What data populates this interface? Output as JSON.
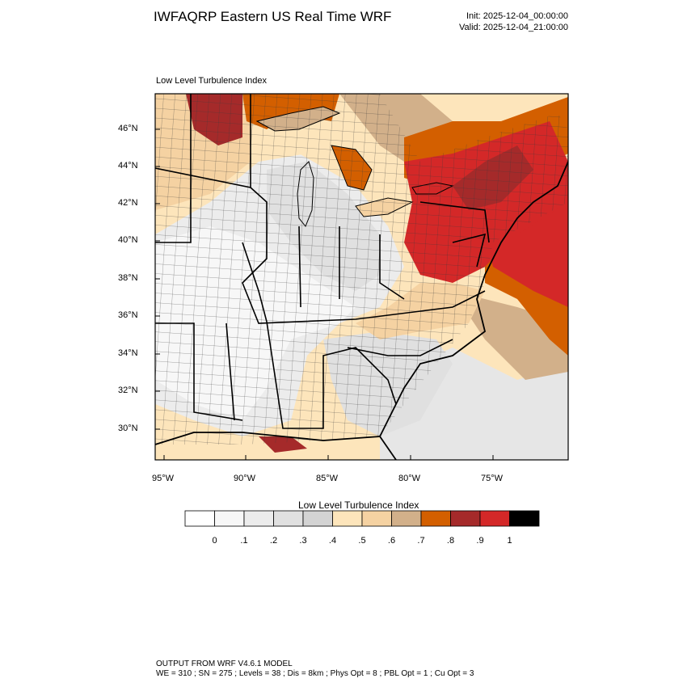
{
  "header": {
    "title": "IWFAQRP Eastern US Real Time WRF",
    "init": "Init: 2025-12-04_00:00:00",
    "valid": "Valid: 2025-12-04_21:00:00"
  },
  "plot": {
    "subtitle": "Low Level Turbulence Index",
    "lat_labels": [
      "46°N",
      "44°N",
      "42°N",
      "40°N",
      "38°N",
      "36°N",
      "34°N",
      "32°N",
      "30°N"
    ],
    "lon_labels": [
      "95°W",
      "90°W",
      "85°W",
      "80°W",
      "75°W"
    ]
  },
  "colorbar": {
    "title": "Low Level Turbulence Index",
    "labels": [
      "0",
      ".1",
      ".2",
      ".3",
      ".4",
      ".5",
      ".6",
      ".7",
      ".8",
      ".9",
      "1"
    ],
    "colors": [
      "#ffffff",
      "#f7f7f7",
      "#ececec",
      "#e0e0e0",
      "#d3d3d3",
      "#fde5bb",
      "#f5d2a2",
      "#d2b08a",
      "#d35f00",
      "#a52a2a",
      "#d42828",
      "#000000"
    ]
  },
  "footer": {
    "line1": "OUTPUT FROM WRF V4.6.1 MODEL",
    "line2": "WE = 310 ; SN = 275 ; Levels = 38 ; Dis = 8km ; Phys Opt = 8 ; PBL Opt = 1 ; Cu Opt = 3"
  }
}
